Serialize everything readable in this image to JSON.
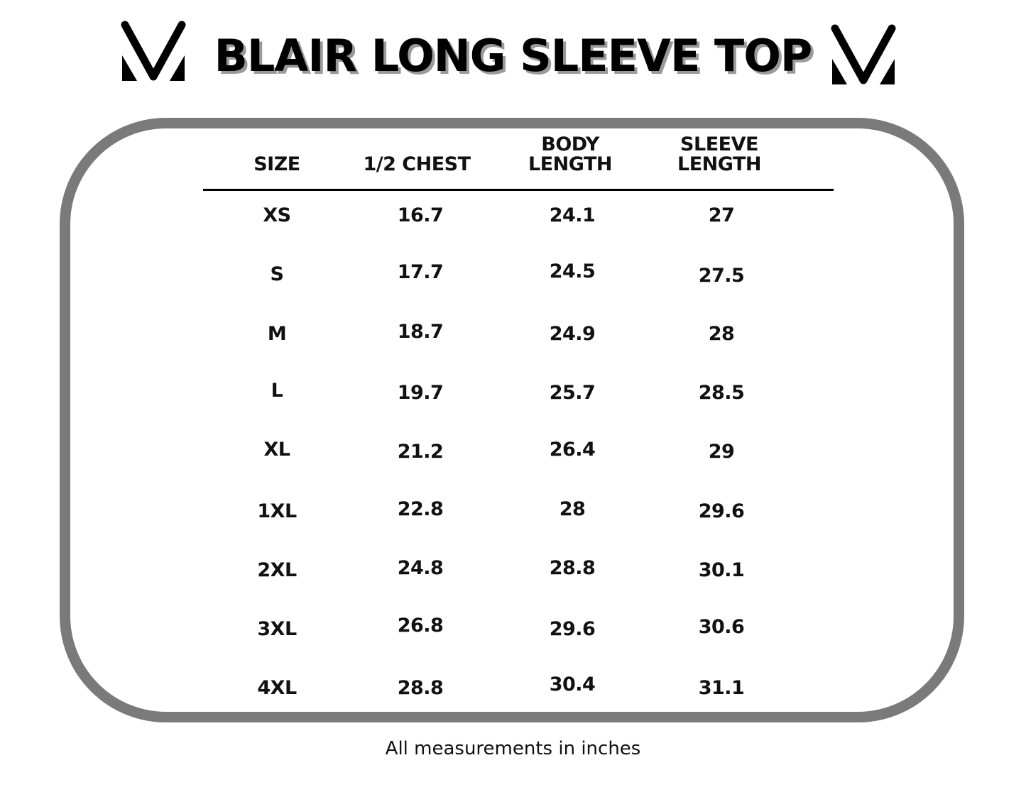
{
  "title": "BLAIR LONG SLEEVE TOP",
  "logo": {
    "name": "v-logo-icon",
    "text": "V"
  },
  "colors": {
    "frame": "#7a7a7a",
    "title_shadow": "#9a9a9a",
    "text": "#000000"
  },
  "table": {
    "headers": [
      {
        "line1": "",
        "line2": "SIZE"
      },
      {
        "line1": "",
        "line2": "1/2 CHEST"
      },
      {
        "line1": "BODY",
        "line2": "LENGTH"
      },
      {
        "line1": "SLEEVE",
        "line2": "LENGTH"
      }
    ],
    "rows": [
      [
        "XS",
        "16.7",
        "24.1",
        "27"
      ],
      [
        "S",
        "17.7",
        "24.5",
        "27.5"
      ],
      [
        "M",
        "18.7",
        "24.9",
        "28"
      ],
      [
        "L",
        "19.7",
        "25.7",
        "28.5"
      ],
      [
        "XL",
        "21.2",
        "26.4",
        "29"
      ],
      [
        "1XL",
        "22.8",
        "28",
        "29.6"
      ],
      [
        "2XL",
        "24.8",
        "28.8",
        "30.1"
      ],
      [
        "3XL",
        "26.8",
        "29.6",
        "30.6"
      ],
      [
        "4XL",
        "28.8",
        "30.4",
        "31.1"
      ]
    ]
  },
  "footnote": "All measurements in inches"
}
